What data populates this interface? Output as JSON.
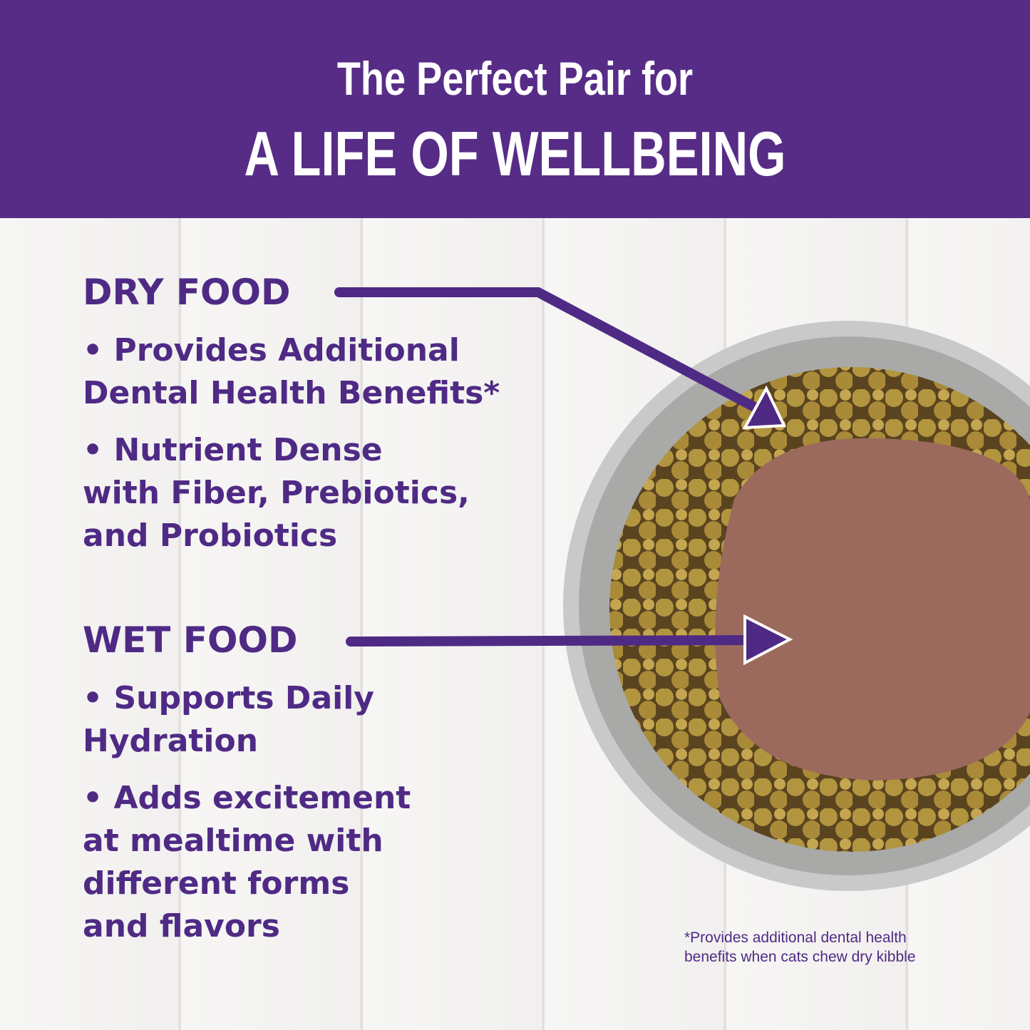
{
  "header": {
    "line1": "The Perfect Pair for",
    "line2": "A LIFE OF WELLBEING"
  },
  "dry": {
    "title": "DRY FOOD",
    "bullets": [
      "• Provides Additional",
      "Dental Health Benefits*",
      "• Nutrient Dense",
      "with Fiber, Prebiotics,",
      "and Probiotics"
    ]
  },
  "wet": {
    "title": "WET FOOD",
    "bullets": [
      "• Supports Daily",
      "Hydration",
      "• Adds excitement",
      "at mealtime with",
      "different forms",
      "and flavors"
    ]
  },
  "footnote": [
    "*Provides additional dental health",
    "benefits when cats chew dry kibble"
  ],
  "colors": {
    "brand": "#572c87",
    "text": "#4f2a85"
  }
}
